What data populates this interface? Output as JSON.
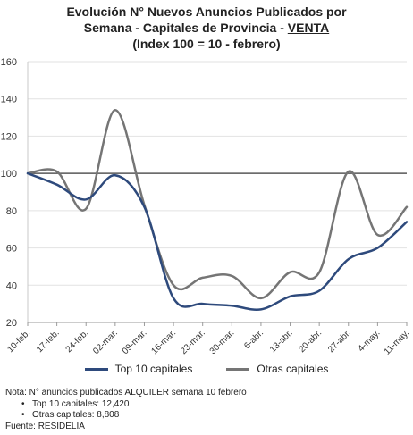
{
  "title": {
    "line1": "Evolución N° Nuevos Anuncios Publicados por",
    "line2": "Semana - Capitales de Provincia - ",
    "line2_underlined": "VENTA",
    "line3": "(Index 100 = 10 - febrero)"
  },
  "chart_data": {
    "type": "line",
    "title": "Evolución N° Nuevos Anuncios Publicados por Semana - Capitales de Provincia - VENTA (Index 100 = 10 - febrero)",
    "categories": [
      "10-feb.",
      "17-feb.",
      "24-feb.",
      "02-mar.",
      "09-mar.",
      "16-mar.",
      "23-mar.",
      "30-mar.",
      "6-abr.",
      "13-abr.",
      "20-abr.",
      "27-abr.",
      "4-may.",
      "11-may."
    ],
    "series": [
      {
        "name": "Top 10 capitales",
        "color": "#2e4a7c",
        "values": [
          100,
          94,
          86,
          99,
          82,
          33,
          30,
          29,
          27,
          34,
          37,
          54,
          60,
          74
        ]
      },
      {
        "name": "Otras capitales",
        "color": "#757575",
        "values": [
          100,
          101,
          81,
          134,
          83,
          40,
          44,
          45,
          33,
          47,
          47,
          101,
          67,
          82
        ]
      }
    ],
    "ylim": [
      20,
      160
    ],
    "yticks": [
      20,
      40,
      60,
      80,
      100,
      120,
      140,
      160
    ],
    "reference_line": 100,
    "grid": true,
    "legend": "bottom"
  },
  "notes": {
    "line1": "Nota: N° anuncios publicados ALQUILER semana 10 febrero",
    "bullet1": "Top 10 capitales: 12,420",
    "bullet2": "Otras capitales:  8,808",
    "source": "Fuente: RESIDELIA"
  }
}
